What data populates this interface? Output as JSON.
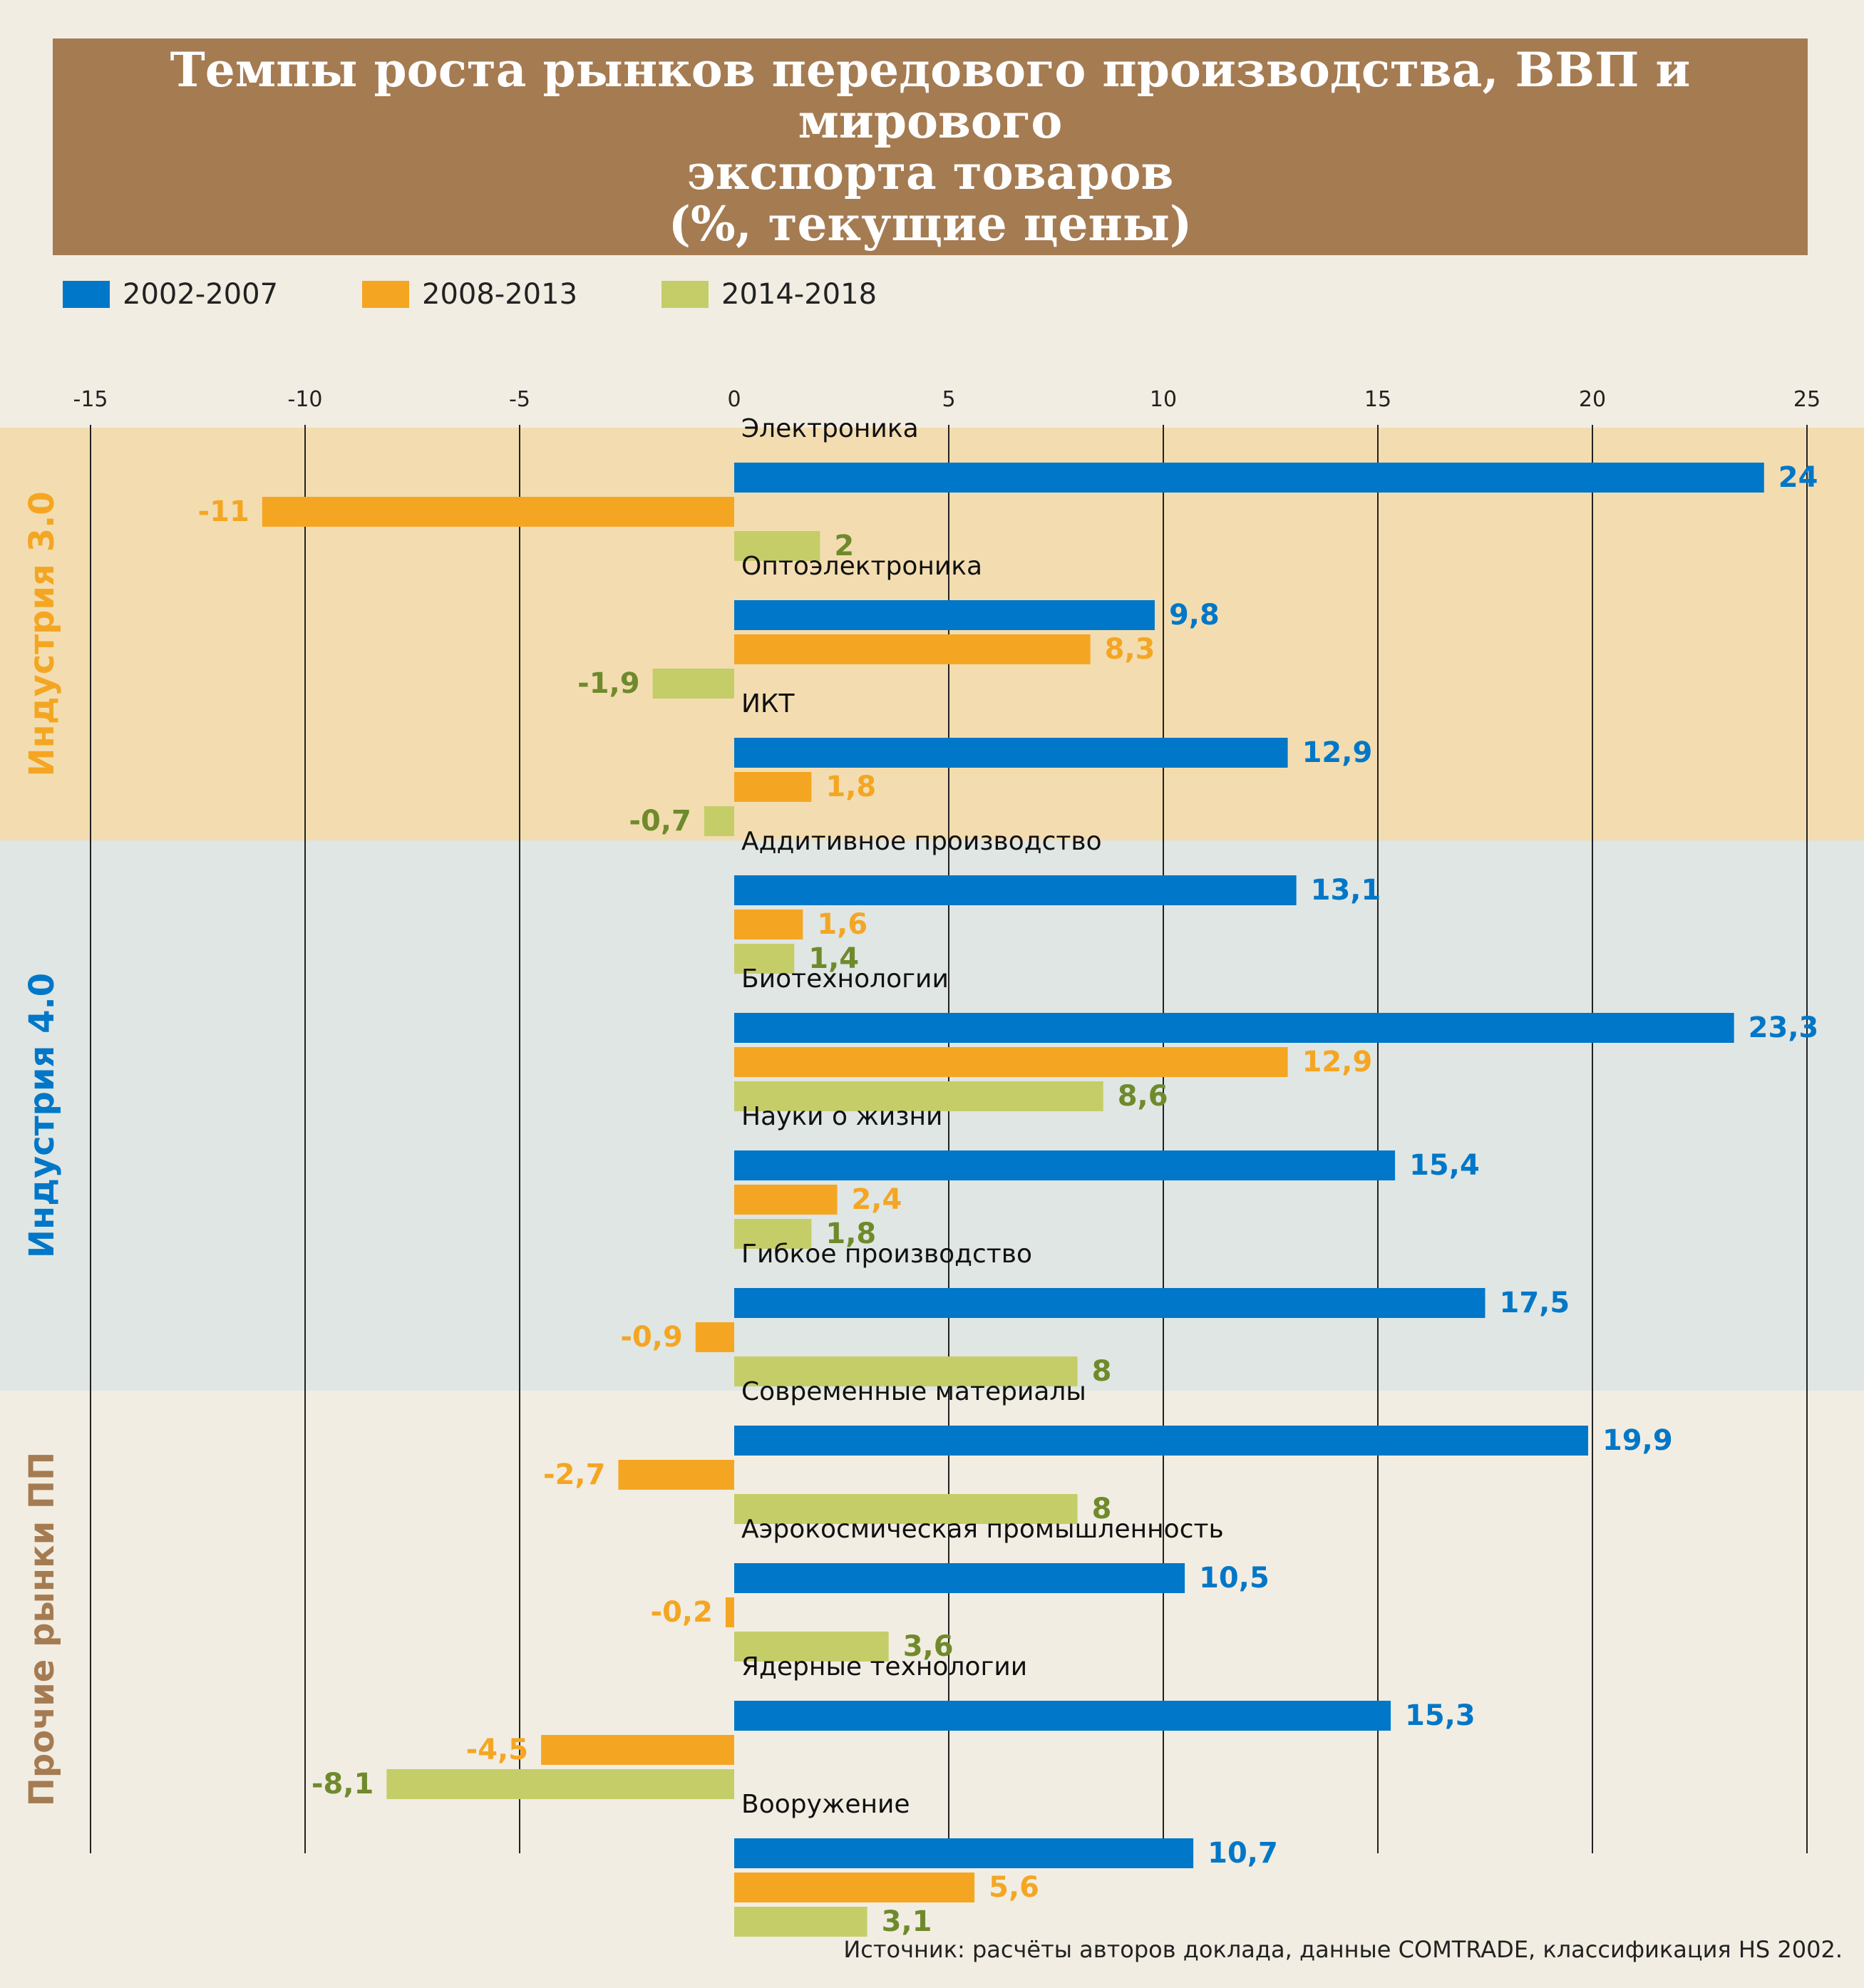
{
  "header": {
    "title_lines": [
      "Темпы роста рынков передового производства, ВВП и мирового",
      "экспорта товаров",
      "(%, текущие цены)"
    ]
  },
  "legend": [
    {
      "label": "2002-2007",
      "color": "#0077c8"
    },
    {
      "label": "2008-2013",
      "color": "#f4a623"
    },
    {
      "label": "2014-2018",
      "color": "#c5cd68"
    }
  ],
  "footer": {
    "source": "Источник: расчёты авторов доклада, данные COMTRADE, классификация HS 2002."
  },
  "colors": {
    "label_2002_2007": "#0077c8",
    "label_2008_2013": "#f4a623",
    "label_2014_2018": "#6f8a2c",
    "gridline": "#222222"
  },
  "chart_data": {
    "type": "bar",
    "orientation": "horizontal",
    "xlim": [
      -15,
      25
    ],
    "xticks": [
      "-15",
      "-10",
      "-5",
      "0",
      "5",
      "10",
      "15",
      "20",
      "25"
    ],
    "grid": true,
    "legend_position": "top-left",
    "groups": [
      {
        "name": "Индустрия 3.0",
        "background": "#f3ddb0",
        "label_color": "#f4a623",
        "categories": [
          "Электроника",
          "Оптоэлектроника",
          "ИКТ"
        ]
      },
      {
        "name": "Индустрия 4.0",
        "background": "#e0e6e3",
        "label_color": "#0077c8",
        "categories": [
          "Аддитивное производство",
          "Биотехнологии",
          "Науки о жизни",
          "Гибкое производство"
        ]
      },
      {
        "name": "Прочие рынки ПП",
        "background": "#f2ede2",
        "label_color": "#a57b52",
        "categories": [
          "Современные материалы",
          "Аэрокосмическая промышленность",
          "Ядерные технологии",
          "Вооружение"
        ]
      }
    ],
    "categories": [
      "Электроника",
      "Оптоэлектроника",
      "ИКТ",
      "Аддитивное производство",
      "Биотехнологии",
      "Науки о жизни",
      "Гибкое производство",
      "Современные материалы",
      "Аэрокосмическая промышленность",
      "Ядерные технологии",
      "Вооружение"
    ],
    "series": [
      {
        "name": "2002-2007",
        "values": [
          24,
          9.8,
          12.9,
          13.1,
          23.3,
          15.4,
          17.5,
          19.9,
          10.5,
          15.3,
          10.7
        ],
        "labels": [
          "24",
          "9,8",
          "12,9",
          "13,1",
          "23,3",
          "15,4",
          "17,5",
          "19,9",
          "10,5",
          "15,3",
          "10,7"
        ]
      },
      {
        "name": "2008-2013",
        "values": [
          -11,
          8.3,
          1.8,
          1.6,
          12.9,
          2.4,
          -0.9,
          -2.7,
          -0.2,
          -4.5,
          5.6
        ],
        "labels": [
          "-11",
          "8,3",
          "1,8",
          "1,6",
          "12,9",
          "2,4",
          "-0,9",
          "-2,7",
          "-0,2",
          "-4,5",
          "5,6"
        ]
      },
      {
        "name": "2014-2018",
        "values": [
          2,
          -1.9,
          -0.7,
          1.4,
          8.6,
          1.8,
          8,
          8,
          3.6,
          -8.1,
          3.1
        ],
        "labels": [
          "2",
          "-1,9",
          "-0,7",
          "1,4",
          "8,6",
          "1,8",
          "8",
          "8",
          "3,6",
          "-8,1",
          "3,1"
        ]
      }
    ]
  }
}
